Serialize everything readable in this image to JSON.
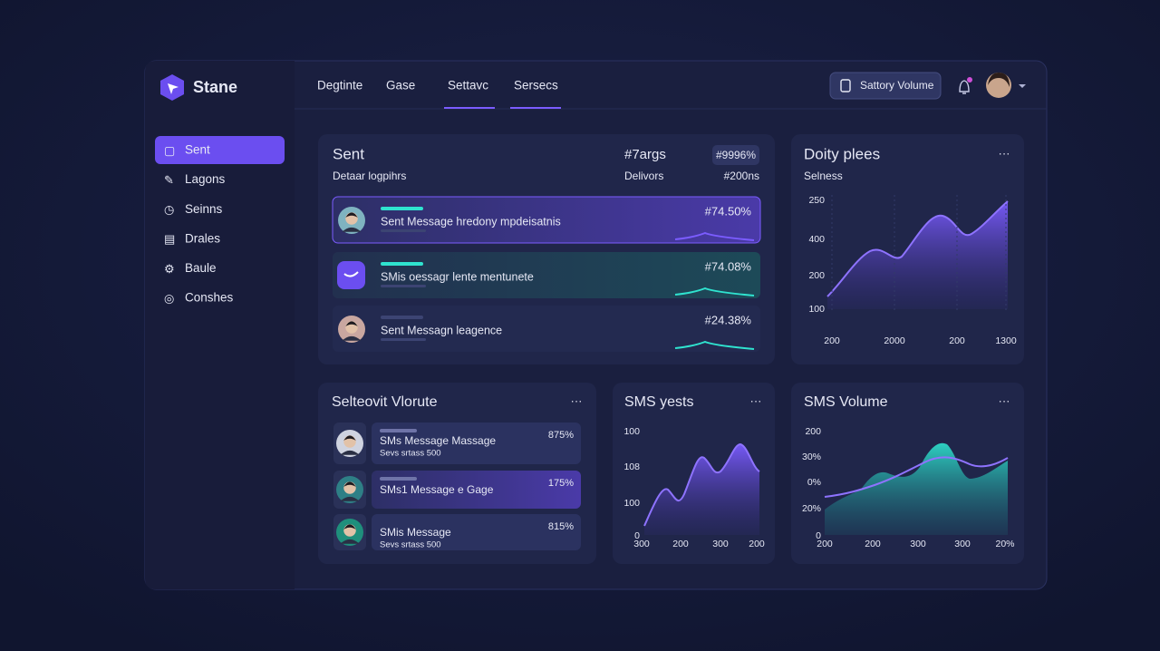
{
  "brand": "Stane",
  "sidebar": [
    "Sent",
    "Lagons",
    "Seinns",
    "Drales",
    "Baule",
    "Conshes"
  ],
  "nav": [
    "Degtinte",
    "Gase",
    "Settavc",
    "Sersecs"
  ],
  "button": "Sattory Volume",
  "sent_card": {
    "title": "Sent",
    "subtitle": "Detaar logpihrs",
    "column_title": "#7args",
    "column_subtitle": "Delivors",
    "badge": "#9996%",
    "badge_subtitle": "#200ns",
    "rows": [
      {
        "text": "Sent Message hredony mpdeisatnis",
        "value": "#74.50%"
      },
      {
        "text": "SMis oessagr lente mentunete",
        "value": "#74.08%"
      },
      {
        "text": "Sent Messagn leagence",
        "value": "#24.38%"
      }
    ]
  },
  "daily_card": {
    "title": "Doity plees",
    "subtitle": "Selness",
    "y_labels": [
      "250",
      "400",
      "200",
      "100"
    ],
    "x_labels": [
      "200",
      "2000",
      "200",
      "1300"
    ]
  },
  "list_card": {
    "title": "Selteovit Vlorute",
    "rows": [
      {
        "text": "SMs Message Massage",
        "sub": "Sevs srtass 500",
        "value": "875%"
      },
      {
        "text": "SMs1 Message e Gage",
        "value": "175%"
      },
      {
        "text": "SMis Message",
        "sub": "Sevs srtass 500",
        "value": "815%"
      }
    ]
  },
  "tests_card": {
    "title": "SMS yests",
    "y_labels": [
      "100",
      "108",
      "100",
      "0"
    ],
    "x_labels": [
      "300",
      "200",
      "300",
      "200"
    ]
  },
  "volume_card": {
    "title": "SMS Volume",
    "y_labels": [
      "200",
      "30%",
      "0%",
      "20%",
      "0"
    ],
    "x_labels": [
      "200",
      "200",
      "300",
      "300",
      "20%"
    ]
  }
}
